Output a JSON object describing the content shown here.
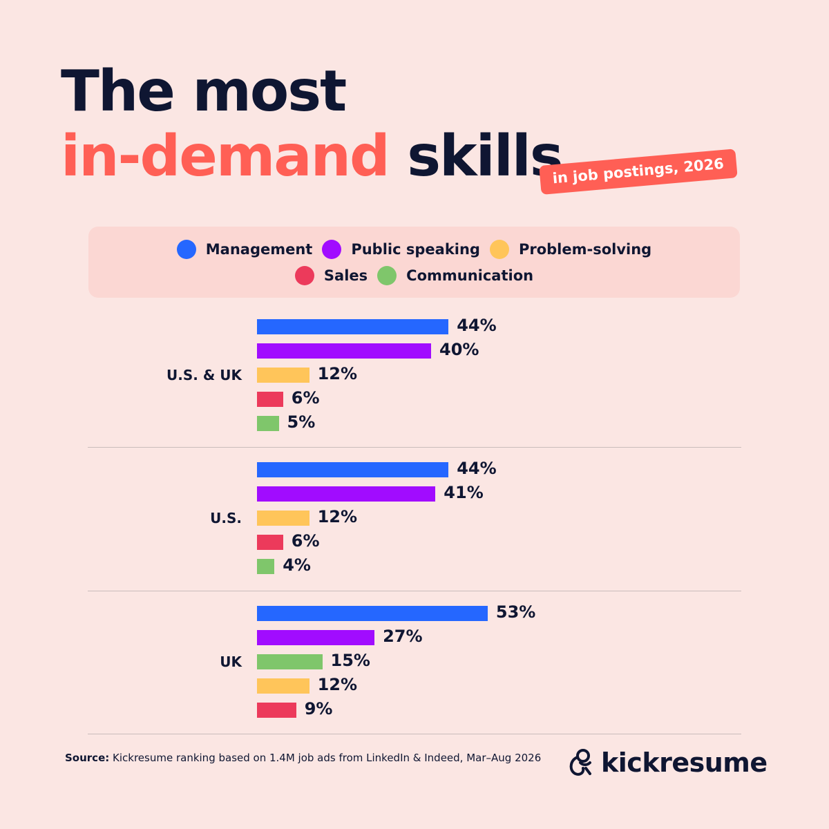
{
  "title": {
    "line1": "The most",
    "accent": "in-demand",
    "rest": "skills",
    "badge": "in job postings, 2026"
  },
  "legend": [
    {
      "name": "Management",
      "color": "#2567ff"
    },
    {
      "name": "Public speaking",
      "color": "#a10cff"
    },
    {
      "name": "Problem-solving",
      "color": "#ffc55a"
    },
    {
      "name": "Sales",
      "color": "#ec3a5b"
    },
    {
      "name": "Communication",
      "color": "#7fc66b"
    }
  ],
  "chart_data": {
    "type": "bar",
    "orientation": "horizontal",
    "value_format": "%",
    "groups": [
      {
        "name": "U.S. & UK",
        "bars": [
          {
            "series": "Management",
            "value": 44,
            "label": "44%"
          },
          {
            "series": "Public speaking",
            "value": 40,
            "label": "40%"
          },
          {
            "series": "Problem-solving",
            "value": 12,
            "label": "12%"
          },
          {
            "series": "Sales",
            "value": 6,
            "label": "6%"
          },
          {
            "series": "Communication",
            "value": 5,
            "label": "5%"
          }
        ]
      },
      {
        "name": "U.S.",
        "bars": [
          {
            "series": "Management",
            "value": 44,
            "label": "44%"
          },
          {
            "series": "Public speaking",
            "value": 41,
            "label": "41%"
          },
          {
            "series": "Problem-solving",
            "value": 12,
            "label": "12%"
          },
          {
            "series": "Sales",
            "value": 6,
            "label": "6%"
          },
          {
            "series": "Communication",
            "value": 4,
            "label": "4%"
          }
        ]
      },
      {
        "name": "UK",
        "bars": [
          {
            "series": "Management",
            "value": 53,
            "label": "53%"
          },
          {
            "series": "Public speaking",
            "value": 27,
            "label": "27%"
          },
          {
            "series": "Communication",
            "value": 15,
            "label": "15%"
          },
          {
            "series": "Problem-solving",
            "value": 12,
            "label": "12%"
          },
          {
            "series": "Sales",
            "value": 9,
            "label": "9%"
          }
        ]
      }
    ]
  },
  "footer": {
    "source_label": "Source:",
    "source_text": "Kickresume ranking based on 1.4M job ads from LinkedIn & Indeed, Mar–Aug 2026",
    "brand": "kickresume"
  }
}
